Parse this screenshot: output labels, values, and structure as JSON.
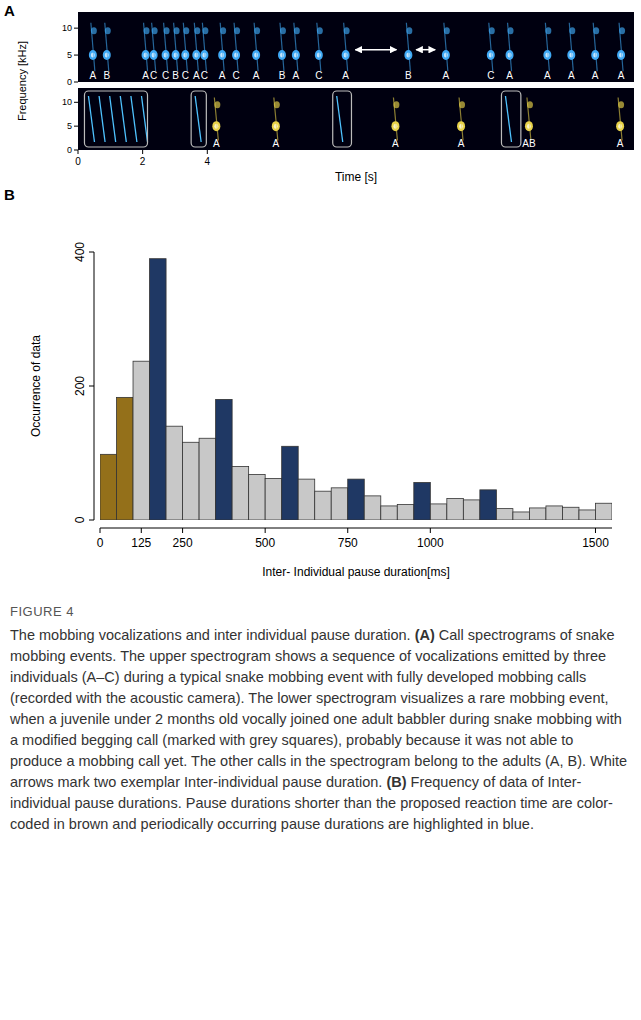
{
  "chart_data": [
    {
      "type": "spectrogram",
      "panel": "A",
      "ylabel": "Frequency [kHz]",
      "xlabel": "Time [s]",
      "xlim": [
        0,
        17.2
      ],
      "xticks": [
        0,
        2,
        4
      ],
      "ylim": [
        0,
        13
      ],
      "yticks": [
        0,
        5,
        10
      ],
      "rows": [
        {
          "color": "#3fa9f5",
          "x": [
            0.46,
            0.89,
            2.09,
            2.34,
            2.71,
            3.02,
            3.32,
            3.66,
            3.91,
            4.46,
            4.89,
            5.51,
            6.31,
            6.74,
            7.45,
            8.28,
            10.22,
            11.38,
            12.77,
            13.35,
            14.52,
            15.26,
            16.0,
            16.8
          ],
          "labels": [
            "A",
            "B",
            "A",
            "C",
            "C",
            "B",
            "C",
            "A",
            "C",
            "A",
            "C",
            "A",
            "B",
            "A",
            "C",
            "A",
            "B",
            "A",
            "C",
            "A",
            "A",
            "A",
            "A",
            "A"
          ],
          "arrows": [
            [
              8.58,
              9.85
            ],
            [
              10.46,
              11.05
            ]
          ]
        },
        {
          "color": "#e8d24a",
          "x": [
            4.28,
            6.12,
            9.82,
            11.85,
            13.95,
            16.77
          ],
          "labels": [
            "A",
            "A",
            "A",
            "A",
            "AB",
            "A"
          ],
          "boxes": [
            [
              0.2,
              2.15
            ],
            [
              3.5,
              3.97
            ],
            [
              7.88,
              8.46
            ],
            [
              13.1,
              13.7
            ]
          ]
        }
      ]
    },
    {
      "type": "histogram",
      "panel": "B",
      "xlabel": "Inter- Individual pause duration[ms]",
      "ylabel": "Occurrence of data",
      "bins": [
        0,
        50,
        100,
        150,
        200,
        250,
        300,
        350,
        400,
        450,
        500,
        550,
        600,
        650,
        700,
        750,
        800,
        850,
        900,
        950,
        1000,
        1050,
        1100,
        1150,
        1200,
        1250,
        1300,
        1350,
        1400,
        1450,
        1500,
        1550
      ],
      "values": [
        98,
        183,
        237,
        390,
        140,
        116,
        122,
        180,
        80,
        68,
        62,
        110,
        61,
        43,
        48,
        61,
        36,
        21,
        23,
        56,
        24,
        32,
        30,
        45,
        17,
        12,
        18,
        21,
        19,
        15,
        25
      ],
      "colors": [
        "#94701a",
        "#94701a",
        "#c8c8c8",
        "#1f3864",
        "#c8c8c8",
        "#c8c8c8",
        "#c8c8c8",
        "#1f3864",
        "#c8c8c8",
        "#c8c8c8",
        "#c8c8c8",
        "#1f3864",
        "#c8c8c8",
        "#c8c8c8",
        "#c8c8c8",
        "#1f3864",
        "#c8c8c8",
        "#c8c8c8",
        "#c8c8c8",
        "#1f3864",
        "#c8c8c8",
        "#c8c8c8",
        "#c8c8c8",
        "#1f3864",
        "#c8c8c8",
        "#c8c8c8",
        "#c8c8c8",
        "#c8c8c8",
        "#c8c8c8",
        "#c8c8c8",
        "#c8c8c8"
      ],
      "xlim": [
        0,
        1550
      ],
      "xticks": [
        0,
        125,
        250,
        500,
        750,
        1000,
        1500
      ],
      "ylim": [
        0,
        400
      ],
      "yticks": [
        0,
        200,
        400
      ]
    }
  ],
  "caption": {
    "label": "FIGURE 4",
    "parts": [
      {
        "text": "The mobbing vocalizations and inter individual pause duration. "
      },
      {
        "text": "(A)",
        "bold": true
      },
      {
        "text": " Call spectrograms of snake mobbing events. The upper spectrogram shows a sequence of vocalizations emitted by three individuals (A–C) during a typical snake mobbing event with fully developed mobbing calls (recorded with the acoustic camera). The lower spectrogram visualizes a rare mobbing event, when a juvenile under 2 months old vocally joined one adult babbler during snake mobbing with a modified begging call (marked with grey squares), probably because it was not able to produce a mobbing call yet. The other calls in the spectrogram belong to the adults (A, B). White arrows mark two exemplar Inter-individual pause duration. "
      },
      {
        "text": "(B)",
        "bold": true
      },
      {
        "text": " Frequency of data of Inter-individual pause durations. Pause durations shorter than the proposed reaction time are color-coded in brown and periodically occurring pause durations are highlighted in blue."
      }
    ]
  }
}
